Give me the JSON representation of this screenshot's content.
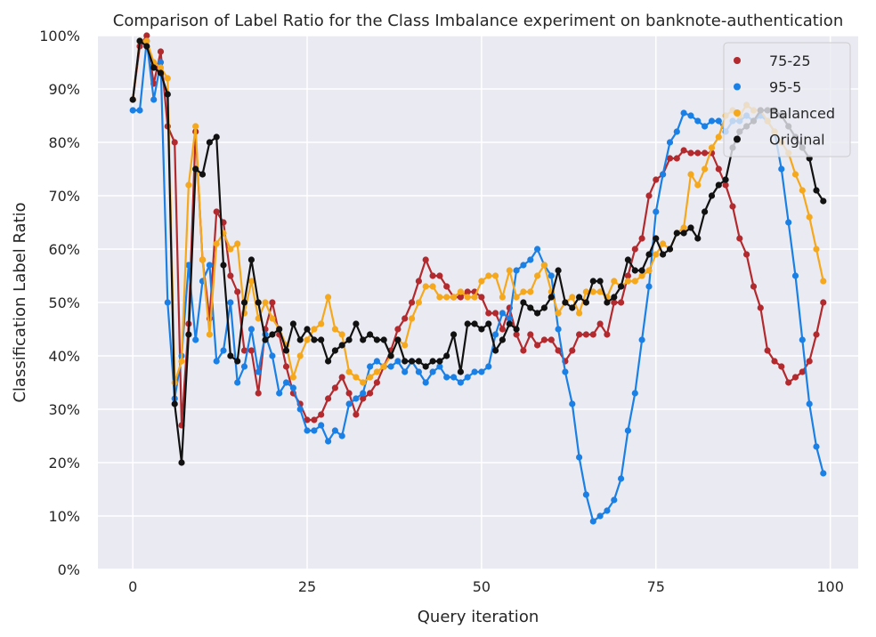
{
  "chart_data": {
    "type": "line",
    "title": "Comparison of Label Ratio for the Class Imbalance experiment on banknote-authentication",
    "xlabel": "Query iteration",
    "ylabel": "Classification Label Ratio",
    "xlim": [
      -5,
      104
    ],
    "ylim": [
      0,
      1
    ],
    "xticks": [
      0,
      25,
      50,
      75,
      100
    ],
    "xtick_labels": [
      "0",
      "25",
      "50",
      "75",
      "100"
    ],
    "yticks": [
      0,
      0.1,
      0.2,
      0.3,
      0.4,
      0.5,
      0.6,
      0.7,
      0.8,
      0.9,
      1.0
    ],
    "ytick_labels": [
      "0%",
      "10%",
      "20%",
      "30%",
      "40%",
      "50%",
      "60%",
      "70%",
      "80%",
      "90%",
      "100%"
    ],
    "grid": true,
    "legend_position": "top-right",
    "x": [
      0,
      1,
      2,
      3,
      4,
      5,
      6,
      7,
      8,
      9,
      10,
      11,
      12,
      13,
      14,
      15,
      16,
      17,
      18,
      19,
      20,
      21,
      22,
      23,
      24,
      25,
      26,
      27,
      28,
      29,
      30,
      31,
      32,
      33,
      34,
      35,
      36,
      37,
      38,
      39,
      40,
      41,
      42,
      43,
      44,
      45,
      46,
      47,
      48,
      49,
      50,
      51,
      52,
      53,
      54,
      55,
      56,
      57,
      58,
      59,
      60,
      61,
      62,
      63,
      64,
      65,
      66,
      67,
      68,
      69,
      70,
      71,
      72,
      73,
      74,
      75,
      76,
      77,
      78,
      79,
      80,
      81,
      82,
      83,
      84,
      85,
      86,
      87,
      88,
      89,
      90,
      91,
      92,
      93,
      94,
      95,
      96,
      97,
      98,
      99
    ],
    "series": [
      {
        "name": "75-25",
        "color": "#b22a2e",
        "values": [
          0.88,
          0.98,
          1.0,
          0.91,
          0.97,
          0.83,
          0.8,
          0.27,
          0.46,
          0.82,
          0.58,
          0.47,
          0.67,
          0.65,
          0.55,
          0.52,
          0.41,
          0.41,
          0.33,
          0.45,
          0.5,
          0.44,
          0.38,
          0.33,
          0.31,
          0.28,
          0.28,
          0.29,
          0.32,
          0.34,
          0.36,
          0.33,
          0.29,
          0.32,
          0.33,
          0.35,
          0.38,
          0.41,
          0.45,
          0.47,
          0.5,
          0.54,
          0.58,
          0.55,
          0.55,
          0.53,
          0.51,
          0.51,
          0.52,
          0.52,
          0.51,
          0.48,
          0.48,
          0.45,
          0.49,
          0.44,
          0.41,
          0.44,
          0.42,
          0.43,
          0.43,
          0.41,
          0.39,
          0.41,
          0.44,
          0.44,
          0.44,
          0.46,
          0.44,
          0.5,
          0.5,
          0.55,
          0.6,
          0.62,
          0.7,
          0.73,
          0.74,
          0.77,
          0.77,
          0.785,
          0.78,
          0.78,
          0.78,
          0.78,
          0.75,
          0.72,
          0.68,
          0.62,
          0.59,
          0.53,
          0.49,
          0.41,
          0.39,
          0.38,
          0.35,
          0.36,
          0.37,
          0.39,
          0.44,
          0.5
        ]
      },
      {
        "name": "95-5",
        "color": "#1a80e6",
        "values": [
          0.86,
          0.86,
          0.99,
          0.88,
          0.95,
          0.5,
          0.32,
          0.4,
          0.57,
          0.43,
          0.54,
          0.57,
          0.39,
          0.41,
          0.5,
          0.35,
          0.38,
          0.45,
          0.37,
          0.44,
          0.4,
          0.33,
          0.35,
          0.34,
          0.3,
          0.26,
          0.26,
          0.27,
          0.24,
          0.26,
          0.25,
          0.31,
          0.32,
          0.33,
          0.38,
          0.39,
          0.38,
          0.38,
          0.39,
          0.37,
          0.39,
          0.37,
          0.35,
          0.37,
          0.38,
          0.36,
          0.36,
          0.35,
          0.36,
          0.37,
          0.37,
          0.38,
          0.44,
          0.48,
          0.47,
          0.56,
          0.57,
          0.58,
          0.6,
          0.57,
          0.55,
          0.45,
          0.37,
          0.31,
          0.21,
          0.14,
          0.09,
          0.1,
          0.11,
          0.13,
          0.17,
          0.26,
          0.33,
          0.43,
          0.53,
          0.67,
          0.74,
          0.8,
          0.82,
          0.855,
          0.85,
          0.84,
          0.83,
          0.84,
          0.84,
          0.82,
          0.84,
          0.84,
          0.85,
          0.84,
          0.85,
          0.84,
          0.82,
          0.75,
          0.65,
          0.55,
          0.43,
          0.31,
          0.23,
          0.18
        ]
      },
      {
        "name": "Balanced",
        "color": "#f5a81c",
        "values": [
          0.88,
          0.99,
          0.99,
          0.95,
          0.94,
          0.92,
          0.35,
          0.39,
          0.72,
          0.83,
          0.58,
          0.44,
          0.61,
          0.63,
          0.6,
          0.61,
          0.48,
          0.54,
          0.47,
          0.5,
          0.47,
          0.45,
          0.42,
          0.36,
          0.4,
          0.43,
          0.45,
          0.46,
          0.51,
          0.45,
          0.44,
          0.37,
          0.36,
          0.35,
          0.36,
          0.37,
          0.38,
          0.4,
          0.43,
          0.42,
          0.47,
          0.5,
          0.53,
          0.53,
          0.51,
          0.51,
          0.51,
          0.52,
          0.51,
          0.51,
          0.54,
          0.55,
          0.55,
          0.51,
          0.56,
          0.51,
          0.52,
          0.52,
          0.55,
          0.57,
          0.52,
          0.48,
          0.5,
          0.51,
          0.48,
          0.52,
          0.52,
          0.52,
          0.51,
          0.54,
          0.53,
          0.54,
          0.54,
          0.55,
          0.56,
          0.59,
          0.61,
          0.6,
          0.63,
          0.64,
          0.74,
          0.72,
          0.75,
          0.79,
          0.81,
          0.85,
          0.86,
          0.85,
          0.87,
          0.86,
          0.86,
          0.84,
          0.82,
          0.8,
          0.78,
          0.74,
          0.71,
          0.66,
          0.6,
          0.54
        ]
      },
      {
        "name": "Original",
        "color": "#111111",
        "values": [
          0.88,
          0.99,
          0.98,
          0.94,
          0.93,
          0.89,
          0.31,
          0.2,
          0.44,
          0.75,
          0.74,
          0.8,
          0.81,
          0.57,
          0.4,
          0.39,
          0.5,
          0.58,
          0.5,
          0.43,
          0.44,
          0.45,
          0.41,
          0.46,
          0.43,
          0.45,
          0.43,
          0.43,
          0.39,
          0.41,
          0.42,
          0.43,
          0.46,
          0.43,
          0.44,
          0.43,
          0.43,
          0.4,
          0.43,
          0.39,
          0.39,
          0.39,
          0.38,
          0.39,
          0.39,
          0.4,
          0.44,
          0.37,
          0.46,
          0.46,
          0.45,
          0.46,
          0.41,
          0.43,
          0.46,
          0.45,
          0.5,
          0.49,
          0.48,
          0.49,
          0.51,
          0.56,
          0.5,
          0.49,
          0.51,
          0.5,
          0.54,
          0.54,
          0.5,
          0.51,
          0.53,
          0.58,
          0.56,
          0.56,
          0.59,
          0.62,
          0.59,
          0.6,
          0.63,
          0.63,
          0.64,
          0.62,
          0.67,
          0.7,
          0.72,
          0.73,
          0.79,
          0.82,
          0.83,
          0.84,
          0.86,
          0.86,
          0.86,
          0.85,
          0.83,
          0.81,
          0.79,
          0.77,
          0.71,
          0.69
        ]
      }
    ]
  }
}
